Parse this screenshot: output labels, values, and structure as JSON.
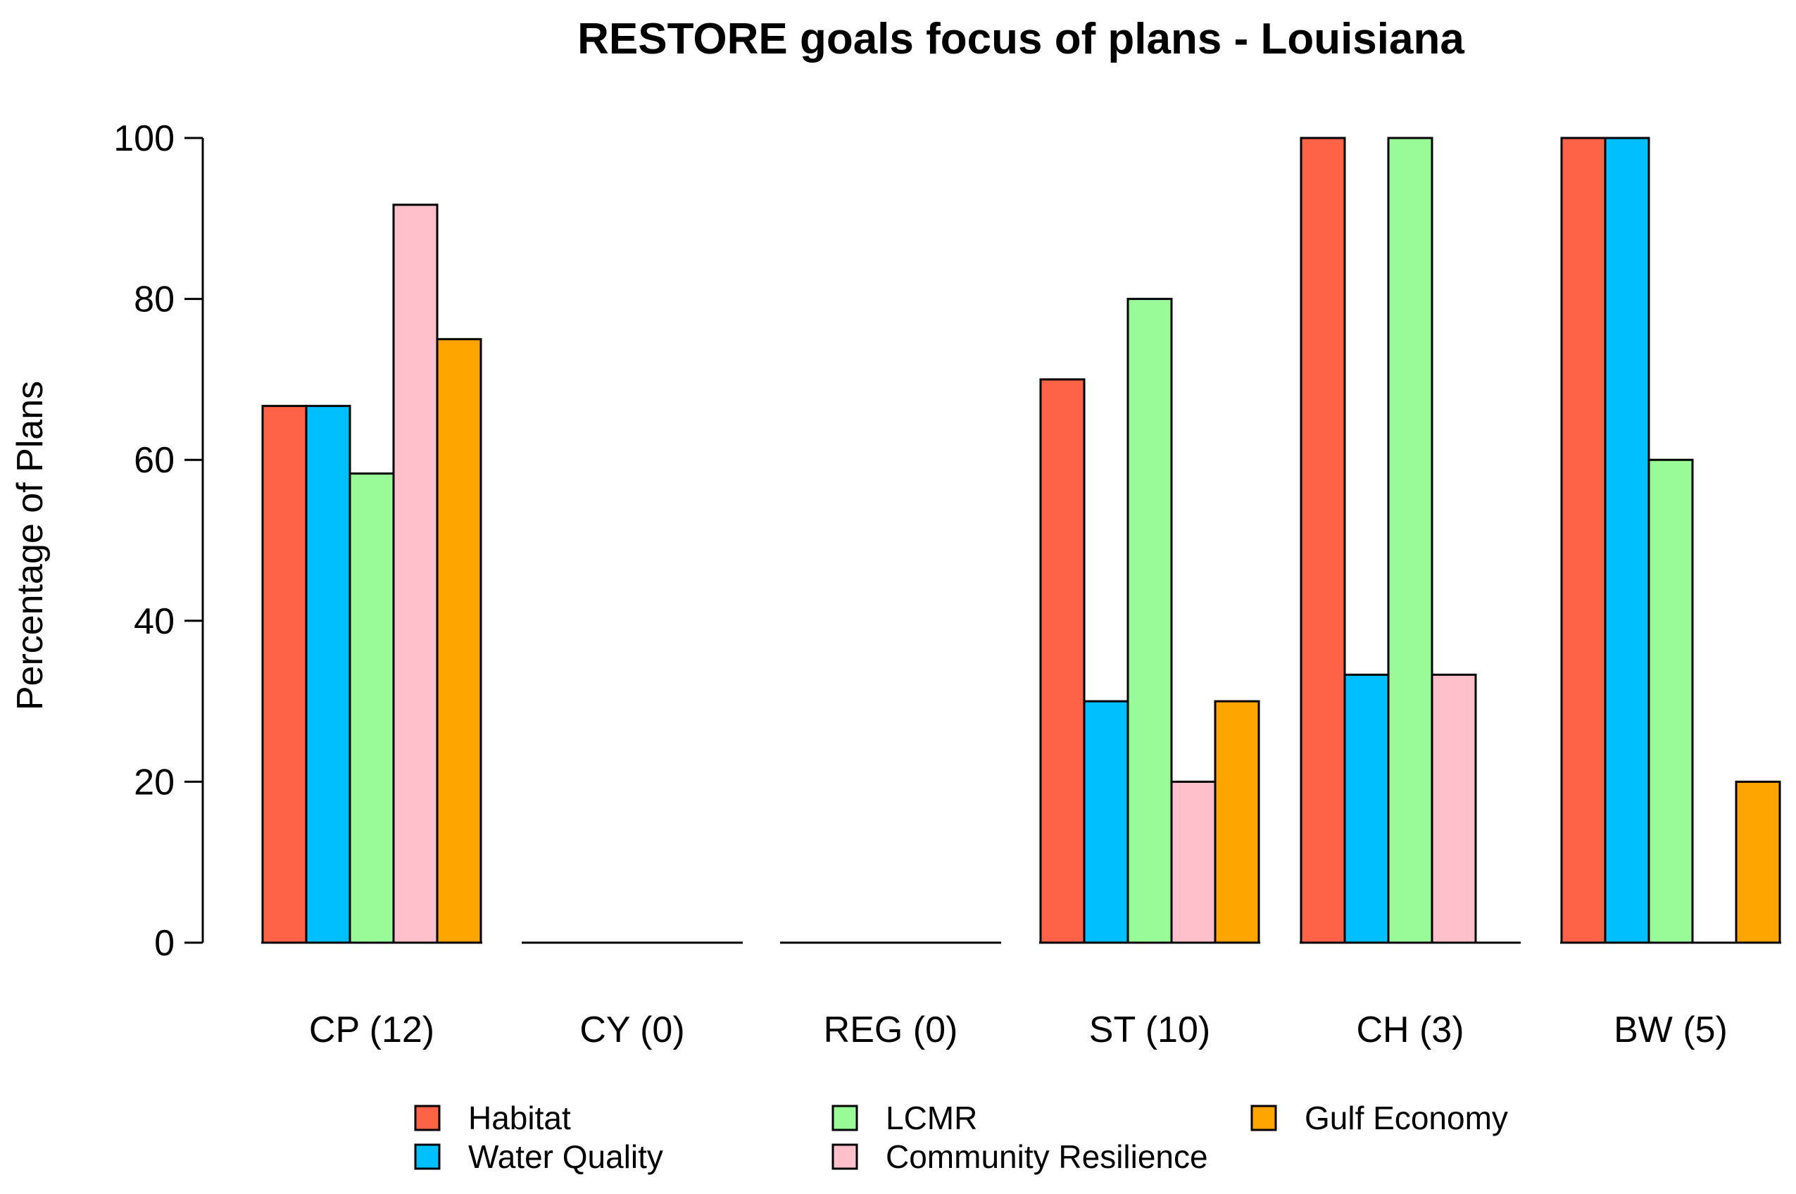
{
  "chart_data": {
    "type": "bar",
    "title": "RESTORE goals focus of plans - Louisiana",
    "xlabel": "",
    "ylabel": "Percentage of Plans",
    "ylim": [
      0,
      100
    ],
    "yticks": [
      0,
      20,
      40,
      60,
      80,
      100
    ],
    "grid": false,
    "legend_position": "bottom",
    "categories": [
      "CP (12)",
      "CY (0)",
      "REG (0)",
      "ST (10)",
      "CH (3)",
      "BW (5)"
    ],
    "series": [
      {
        "name": "Habitat",
        "color": "#FF6347",
        "values": [
          66.7,
          0,
          0,
          70,
          100,
          100
        ]
      },
      {
        "name": "Water Quality",
        "color": "#00BFFF",
        "values": [
          66.7,
          0,
          0,
          30,
          33.3,
          100
        ]
      },
      {
        "name": "LCMR",
        "color": "#98FB98",
        "values": [
          58.3,
          0,
          0,
          80,
          100,
          60
        ]
      },
      {
        "name": "Community Resilience",
        "color": "#FFC0CB",
        "values": [
          91.7,
          0,
          0,
          20,
          33.3,
          0
        ]
      },
      {
        "name": "Gulf Economy",
        "color": "#FFA500",
        "values": [
          75,
          0,
          0,
          30,
          0,
          20
        ]
      }
    ]
  }
}
